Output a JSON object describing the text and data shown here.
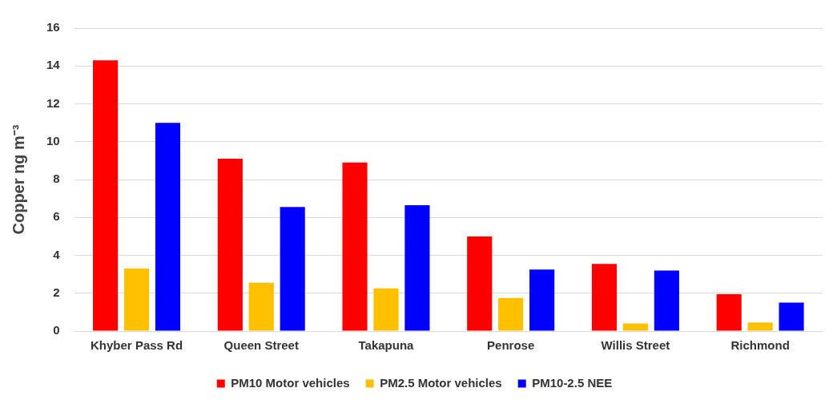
{
  "chart_data": {
    "type": "bar",
    "ylabel": "Copper ng m⁻³",
    "categories": [
      "Khyber Pass Rd",
      "Queen Street",
      "Takapuna",
      "Penrose",
      "Willis Street",
      "Richmond"
    ],
    "series": [
      {
        "name": "PM10 Motor vehicles",
        "color": "#ff0000",
        "values": [
          14.3,
          9.1,
          8.9,
          5.0,
          3.55,
          1.95
        ]
      },
      {
        "name": "PM2.5 Motor vehicles",
        "color": "#ffc000",
        "values": [
          3.3,
          2.55,
          2.25,
          1.75,
          0.4,
          0.45
        ]
      },
      {
        "name": "PM10-2.5 NEE",
        "color": "#0000ff",
        "values": [
          11.0,
          6.55,
          6.65,
          3.25,
          3.2,
          1.5
        ]
      }
    ],
    "ylim": [
      0,
      16
    ],
    "yticks": [
      0,
      2,
      4,
      6,
      8,
      10,
      12,
      14,
      16
    ],
    "grid": "y",
    "legend": "bottom"
  }
}
